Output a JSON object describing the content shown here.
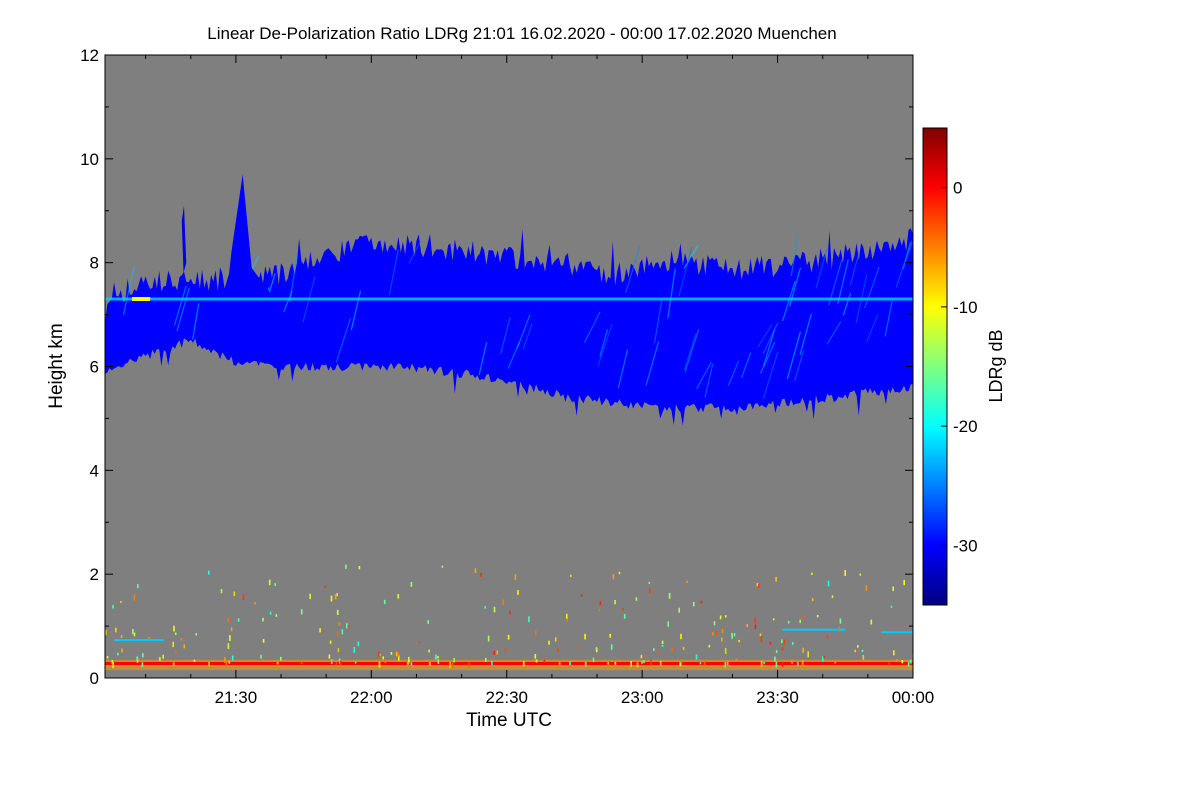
{
  "chart_data": {
    "type": "heatmap",
    "title": "Linear De-Polarization Ratio LDRg   21:01 16.02.2020 - 00:00 17.02.2020 Muenchen",
    "xlabel": "Time UTC",
    "ylabel": "Height km",
    "x_range_minutes_utc": [
      1261,
      1440
    ],
    "ylim": [
      0,
      12
    ],
    "x_ticks": [
      {
        "label": "21:30",
        "minutes": 1290
      },
      {
        "label": "22:00",
        "minutes": 1320
      },
      {
        "label": "22:30",
        "minutes": 1350
      },
      {
        "label": "23:00",
        "minutes": 1380
      },
      {
        "label": "23:30",
        "minutes": 1410
      },
      {
        "label": "00:00",
        "minutes": 1440
      }
    ],
    "y_ticks": [
      0,
      2,
      4,
      6,
      8,
      10,
      12
    ],
    "background_meaning": "no signal",
    "colorbar": {
      "label": "LDRg dB",
      "range_db": [
        -35,
        5
      ],
      "ticks": [
        0,
        -10,
        -20,
        -30
      ],
      "colormap": [
        "#00007f",
        "#0000ff",
        "#0080ff",
        "#00ffff",
        "#80ff80",
        "#ffff00",
        "#ff8000",
        "#ff0000",
        "#7f0000"
      ]
    },
    "features": [
      {
        "name": "cirrus cloud layer",
        "typical_ldr_db": -30,
        "time_minutes": [
          1261,
          1440
        ],
        "top_km": [
          7.0,
          7.6,
          7.6,
          7.6,
          7.7,
          8.0,
          8.3,
          8.3,
          8.2,
          8.1,
          8.0,
          7.9,
          7.7,
          8.0,
          7.9,
          7.8,
          7.9,
          8.0,
          8.2,
          8.4
        ],
        "base_km": [
          5.9,
          6.2,
          6.5,
          6.1,
          6.0,
          6.0,
          6.0,
          6.0,
          5.9,
          5.8,
          5.6,
          5.4,
          5.3,
          5.2,
          5.2,
          5.2,
          5.3,
          5.4,
          5.5,
          5.6
        ]
      },
      {
        "name": "fall streak plume",
        "typical_ldr_db": -30,
        "time_minutes": [
          1287,
          1301
        ],
        "top_km": 9.7,
        "base_km": 6.0
      },
      {
        "name": "thin layer at 7.3 km",
        "typical_ldr_db": -22,
        "peak_ldr_db": -10,
        "height_km": 7.3
      },
      {
        "name": "near-surface layer",
        "typical_ldr_db": 0,
        "height_km": [
          0.15,
          0.35
        ]
      },
      {
        "name": "sparse low-level returns",
        "typical_ldr_db": -10,
        "height_km": [
          0.3,
          2.2
        ]
      }
    ]
  }
}
